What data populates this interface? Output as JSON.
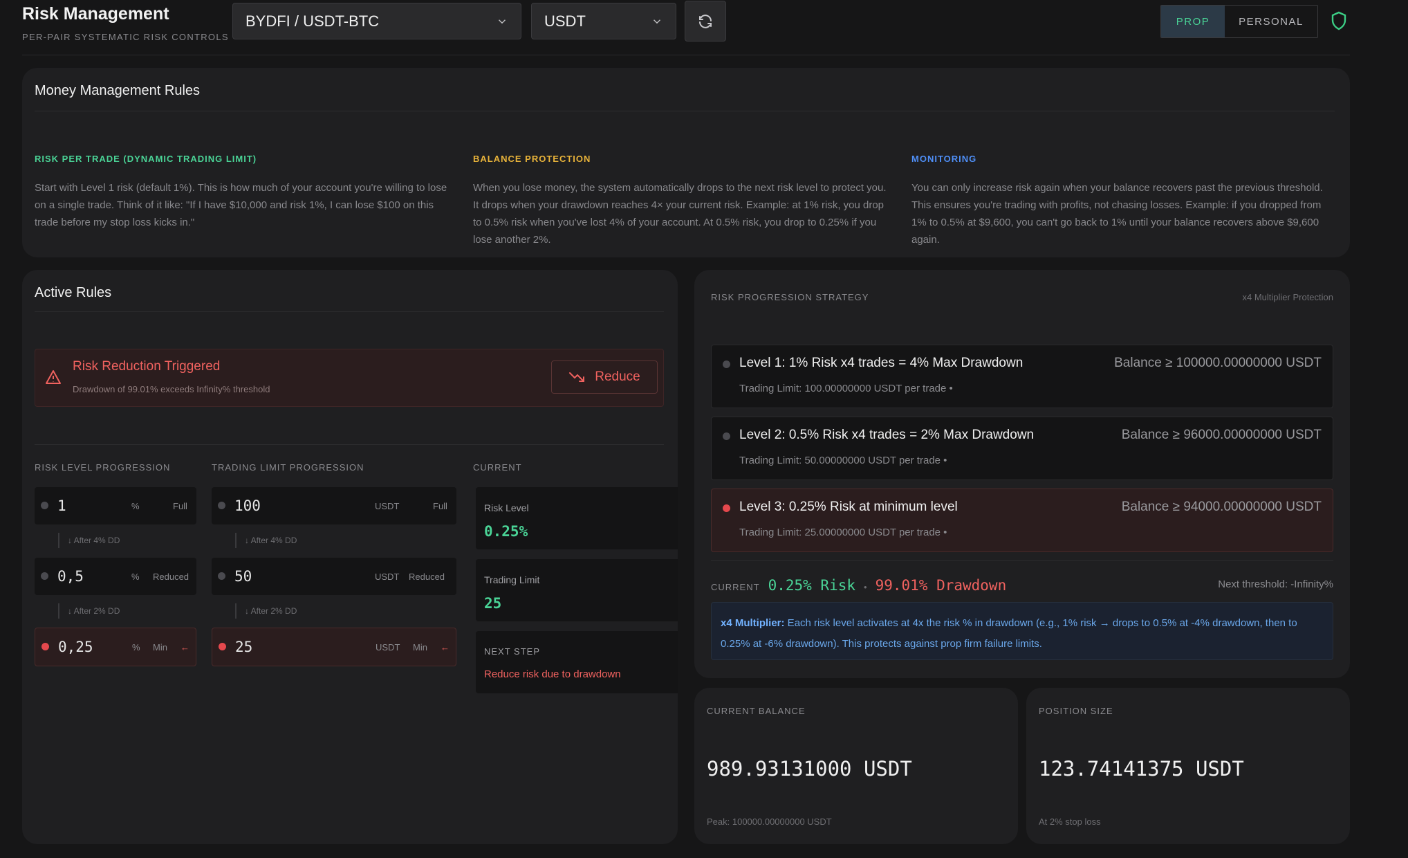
{
  "header": {
    "title": "Risk Management",
    "subtitle": "PER-PAIR SYSTEMATIC RISK CONTROLS",
    "pair_select": "BYDFI / USDT-BTC",
    "currency_select": "USDT",
    "mode_prop": "PROP",
    "mode_personal": "PERSONAL"
  },
  "money_rules": {
    "title": "Money Management Rules",
    "columns": [
      {
        "heading": "RISK PER TRADE (DYNAMIC TRADING LIMIT)",
        "color": "#4ad396",
        "text": "Start with Level 1 risk (default 1%). This is how much of your account you're willing to lose on a single trade. Think of it like: \"If I have $10,000 and risk 1%, I can lose $100 on this trade before my stop loss kicks in.\""
      },
      {
        "heading": "BALANCE PROTECTION",
        "color": "#e8b33a",
        "text": "When you lose money, the system automatically drops to the next risk level to protect you. It drops when your drawdown reaches 4× your current risk. Example: at 1% risk, you drop to 0.5% risk when you've lost 4% of your account. At 0.5% risk, you drop to 0.25% if you lose another 2%."
      },
      {
        "heading": "MONITORING",
        "color": "#4f8ff7",
        "text": "You can only increase risk again when your balance recovers past the previous threshold. This ensures you're trading with profits, not chasing losses. Example: if you dropped from 1% to 0.5% at $9,600, you can't go back to 1% until your balance recovers above $9,600 again."
      }
    ]
  },
  "active_rules": {
    "title": "Active Rules",
    "alert_title": "Risk Reduction Triggered",
    "alert_sub": "Drawdown of 99.01% exceeds Infinity% threshold",
    "reduce_label": "Reduce",
    "risk_header": "RISK LEVEL PROGRESSION",
    "limit_header": "TRADING LIMIT PROGRESSION",
    "current_header": "CURRENT",
    "risk_levels": [
      {
        "value": "1",
        "unit": "%",
        "tag": "Full"
      },
      {
        "value": "0,5",
        "unit": "%",
        "tag": "Reduced"
      },
      {
        "value": "0,25",
        "unit": "%",
        "tag": "Min"
      }
    ],
    "limit_levels": [
      {
        "value": "100",
        "unit": "USDT",
        "tag": "Full"
      },
      {
        "value": "50",
        "unit": "USDT",
        "tag": "Reduced"
      },
      {
        "value": "25",
        "unit": "USDT",
        "tag": "Min"
      }
    ],
    "step1": "↓ After 4% DD",
    "step2": "↓ After 2% DD",
    "arrow": "←",
    "current_risk_label": "Risk Level",
    "current_risk_value": "0.25%",
    "current_limit_label": "Trading Limit",
    "current_limit_value": "25",
    "next_step_label": "NEXT STEP",
    "next_step_value": "Reduce risk due to drawdown"
  },
  "progression": {
    "title": "RISK PROGRESSION STRATEGY",
    "badge": "x4 Multiplier Protection",
    "levels": [
      {
        "title": "Level 1: 1% Risk x4 trades = 4% Max Drawdown",
        "balance": "Balance ≥ 100000.00000000 USDT",
        "limit": "Trading Limit: 100.00000000 USDT per trade •"
      },
      {
        "title": "Level 2: 0.5% Risk x4 trades = 2% Max Drawdown",
        "balance": "Balance ≥ 96000.00000000 USDT",
        "limit": "Trading Limit: 50.00000000 USDT per trade •"
      },
      {
        "title": "Level 3: 0.25% Risk at minimum level",
        "balance": "Balance ≥ 94000.00000000 USDT",
        "limit": "Trading Limit: 25.00000000 USDT per trade •"
      }
    ],
    "current_label": "CURRENT",
    "current_risk": "0.25% Risk",
    "separator": "•",
    "current_drawdown": "99.01% Drawdown",
    "next_threshold": "Next threshold: -Infinity%",
    "info_bold": "x4 Multiplier:",
    "info_text": " Each risk level activates at 4x the risk % in drawdown (e.g., 1% risk → drops to 0.5% at -4% drawdown, then to 0.25% at -6% drawdown). This protects against prop firm failure limits."
  },
  "balance": {
    "label": "CURRENT BALANCE",
    "value": "989.93131000 USDT",
    "foot": "Peak: 100000.00000000 USDT"
  },
  "position": {
    "label": "POSITION SIZE",
    "value": "123.74141375 USDT",
    "foot": "At 2% stop loss"
  }
}
